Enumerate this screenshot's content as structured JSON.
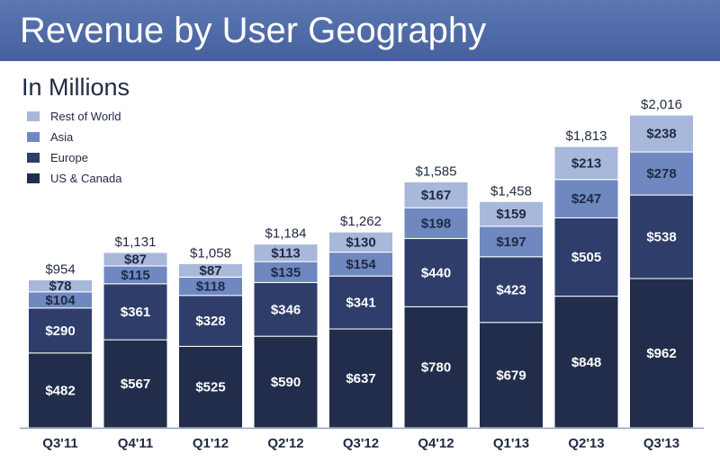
{
  "header": {
    "title": "Revenue by User Geography",
    "subtitle": "In Millions"
  },
  "colors": {
    "header_top": "#5b78b3",
    "header_bottom": "#46609c",
    "axis": "#8fa0bf"
  },
  "chart_data": {
    "type": "bar",
    "stacked": true,
    "title": "Revenue by User Geography",
    "subtitle": "In Millions",
    "xlabel": "",
    "ylabel": "",
    "legend_position": "top-left",
    "grid": false,
    "ylim": [
      0,
      2016
    ],
    "categories": [
      "Q3'11",
      "Q4'11",
      "Q1'12",
      "Q2'12",
      "Q3'12",
      "Q4'12",
      "Q1'13",
      "Q2'13",
      "Q3'13"
    ],
    "totals": [
      "$954",
      "$1,131",
      "$1,058",
      "$1,184",
      "$1,262",
      "$1,585",
      "$1,458",
      "$1,813",
      "$2,016"
    ],
    "total_values": [
      954,
      1131,
      1058,
      1184,
      1262,
      1585,
      1458,
      1813,
      2016
    ],
    "series": [
      {
        "name": "US & Canada",
        "color": "#212d4b",
        "label_dark": false,
        "values": [
          482,
          567,
          525,
          590,
          637,
          780,
          679,
          848,
          962
        ],
        "labels": [
          "$482",
          "$567",
          "$525",
          "$590",
          "$637",
          "$780",
          "$679",
          "$848",
          "$962"
        ]
      },
      {
        "name": "Europe",
        "color": "#2e3d6a",
        "label_dark": false,
        "values": [
          290,
          361,
          328,
          346,
          341,
          440,
          423,
          505,
          538
        ],
        "labels": [
          "$290",
          "$361",
          "$328",
          "$346",
          "$341",
          "$440",
          "$423",
          "$505",
          "$538"
        ]
      },
      {
        "name": "Asia",
        "color": "#6f88c0",
        "label_dark": true,
        "values": [
          104,
          115,
          118,
          135,
          154,
          198,
          197,
          247,
          278
        ],
        "labels": [
          "$104",
          "$115",
          "$118",
          "$135",
          "$154",
          "$198",
          "$197",
          "$247",
          "$278"
        ]
      },
      {
        "name": "Rest of World",
        "color": "#a8b8da",
        "label_dark": true,
        "values": [
          78,
          87,
          87,
          113,
          130,
          167,
          159,
          213,
          238
        ],
        "labels": [
          "$78",
          "$87",
          "$87",
          "$113",
          "$130",
          "$167",
          "$159",
          "$213",
          "$238"
        ]
      }
    ],
    "legend_order": [
      "Rest of World",
      "Asia",
      "Europe",
      "US & Canada"
    ]
  }
}
